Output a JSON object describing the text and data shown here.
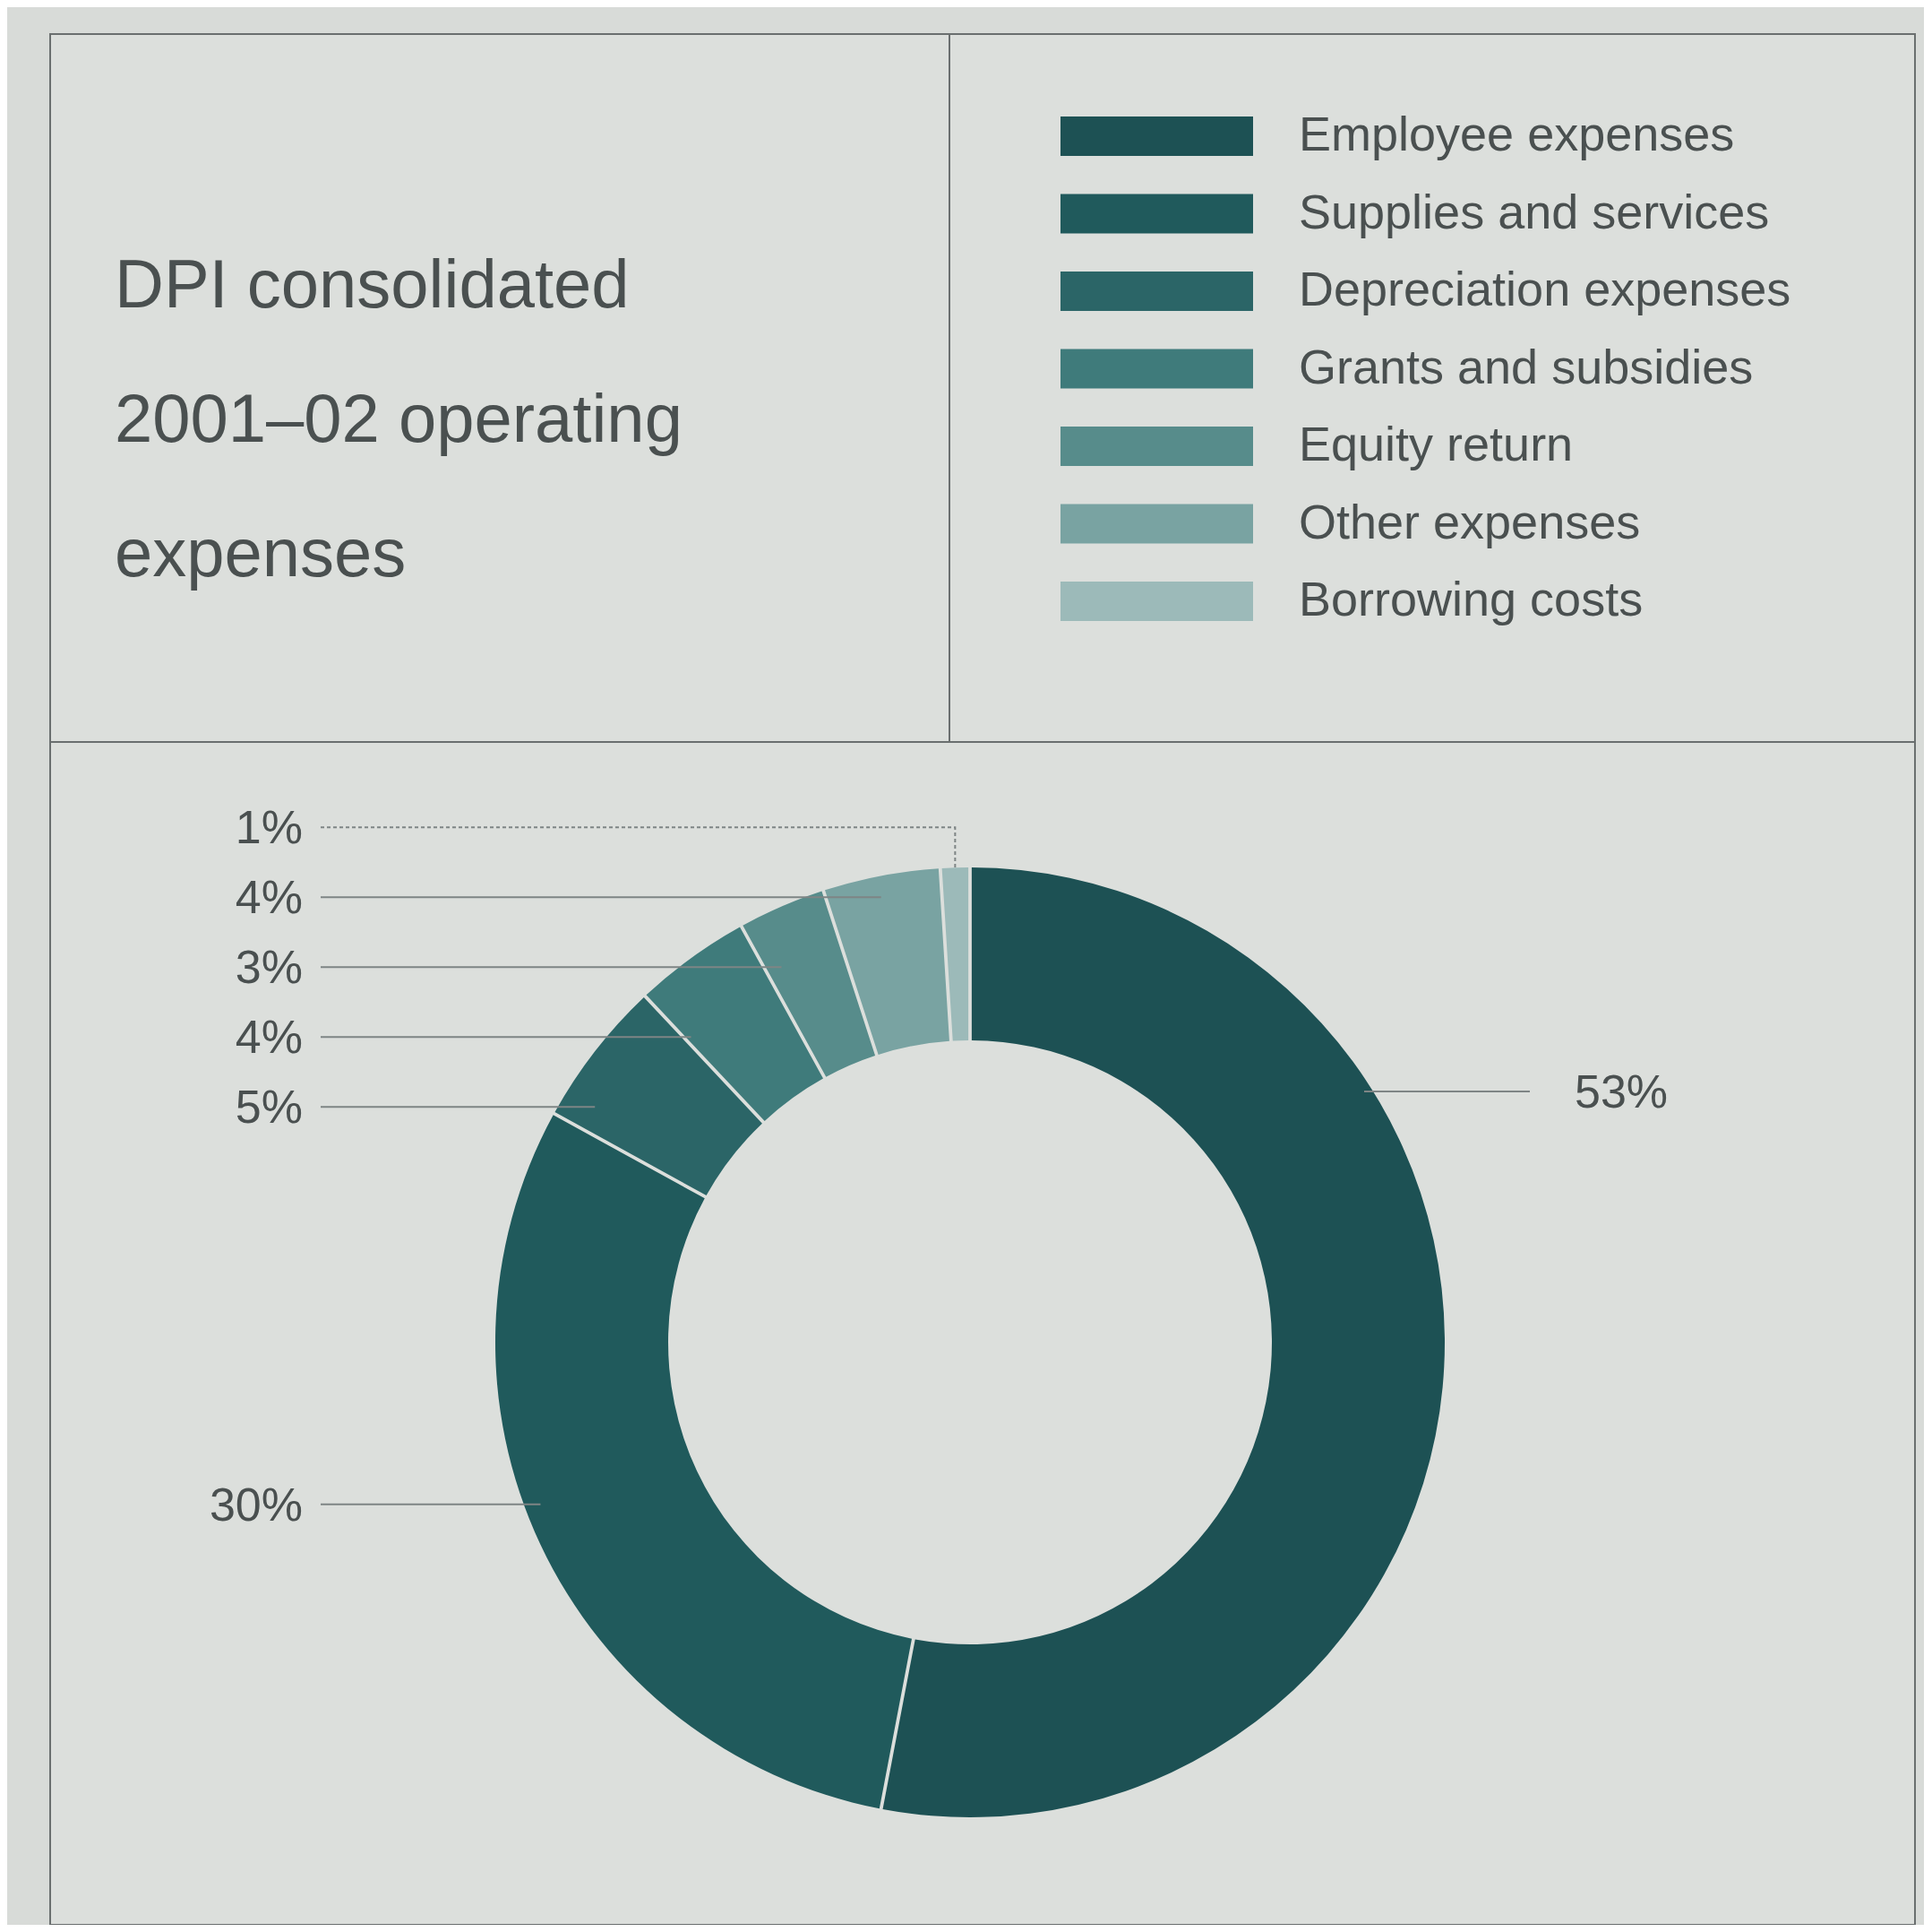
{
  "chart_data": {
    "type": "donut",
    "title": "DPI consolidated 2001–02 operating expenses",
    "categories": [
      "Employee expenses",
      "Supplies and services",
      "Depreciation expenses",
      "Grants and subsidies",
      "Equity return",
      "Other expenses",
      "Borrowing costs"
    ],
    "values": [
      53,
      30,
      5,
      4,
      3,
      4,
      1
    ],
    "colors": [
      "#1d5154",
      "#205a5c",
      "#2b6567",
      "#3f7b7b",
      "#578c8b",
      "#79a3a2",
      "#9cbab9"
    ],
    "value_labels": [
      "53%",
      "30%",
      "5%",
      "4%",
      "3%",
      "4%",
      "1%"
    ],
    "legend": "top right"
  }
}
